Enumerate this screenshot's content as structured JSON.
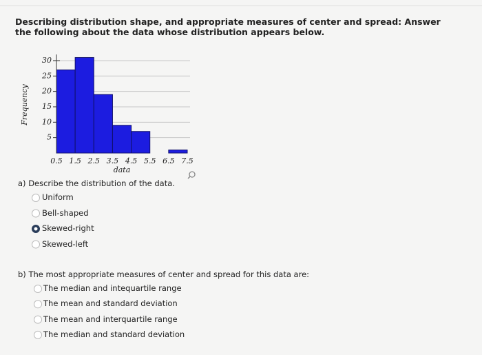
{
  "question": {
    "title": "Describing distribution shape, and appropriate measures of center and spread: Answer the following about the data whose distribution appears below."
  },
  "chart_data": {
    "type": "histogram",
    "bins": [
      0.5,
      1.5,
      2.5,
      3.5,
      4.5,
      5.5,
      6.5,
      7.5
    ],
    "values": [
      27,
      31,
      19,
      9,
      7,
      0,
      1
    ],
    "color": "#1c1ce0",
    "xlabel": "data",
    "ylabel": "Frequency",
    "xlim": [
      0.5,
      7.5
    ],
    "xticks": [
      0.5,
      1.5,
      2.5,
      3.5,
      4.5,
      5.5,
      6.5,
      7.5
    ],
    "ylim": [
      0,
      32
    ],
    "yticks": [
      5,
      10,
      15,
      20,
      25,
      30
    ],
    "grid": true
  },
  "part_a": {
    "prompt": "a) Describe the distribution of the data.",
    "options": [
      "Uniform",
      "Bell-shaped",
      "Skewed-right",
      "Skewed-left"
    ],
    "selected": 2
  },
  "part_b": {
    "prompt": "b) The most appropriate measures of center and spread for this data are:",
    "options": [
      "The median and intequartile range",
      "The mean and standard deviation",
      "The mean and interquartile range",
      "The median and standard deviation"
    ]
  }
}
